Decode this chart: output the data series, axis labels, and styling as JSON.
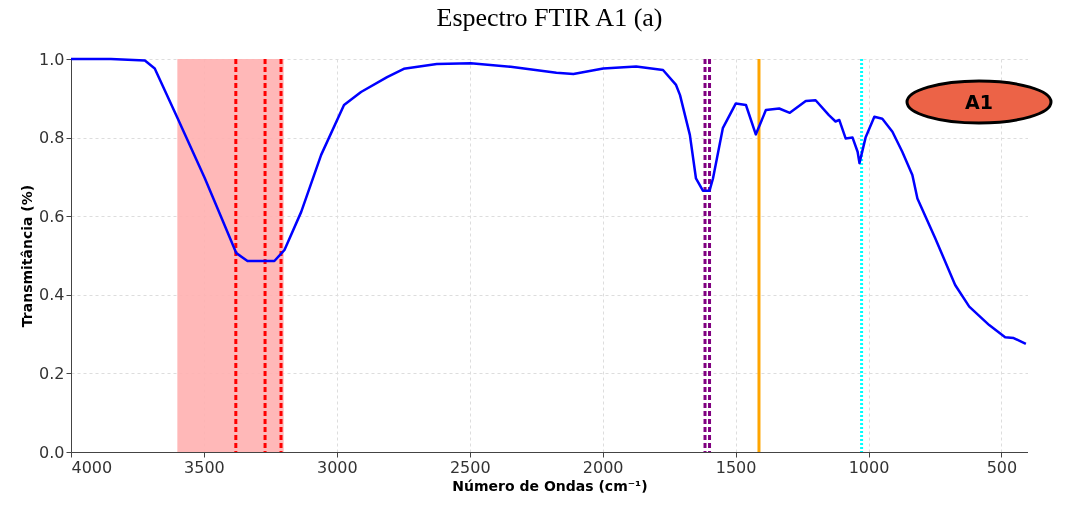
{
  "chart_data": {
    "type": "line",
    "title": "Espectro FTIR A1 (a)",
    "xlabel": "Número de Ondas (cm⁻¹)",
    "ylabel": "Transmitância (%)",
    "annotations": [
      "A1"
    ],
    "xlim": [
      4000,
      400
    ],
    "xticks": [
      4000,
      3500,
      3000,
      2500,
      2000,
      1500,
      1000,
      500
    ],
    "ylim": [
      0,
      1
    ],
    "yticks": [
      {
        "value": 0,
        "label": "0.0"
      },
      {
        "value": 0.2,
        "label": "0.2"
      },
      {
        "value": 0.4,
        "label": "0.4"
      },
      {
        "value": 0.6,
        "label": "0.6"
      },
      {
        "value": 0.8,
        "label": "0.8"
      },
      {
        "value": 1,
        "label": "1.0"
      }
    ],
    "grid": true,
    "line_style": "solid",
    "marker": "none",
    "bands": [
      {
        "axis": "x",
        "from": 3600,
        "to": 3200,
        "color": "#ffb0b0"
      }
    ],
    "ref_lines": [
      {
        "axis": "x",
        "value": 3380,
        "color": "#ff0000",
        "line_style": "dashed"
      },
      {
        "axis": "x",
        "value": 3270,
        "color": "#ff0000",
        "line_style": "dashed"
      },
      {
        "axis": "x",
        "value": 3210,
        "color": "#ff0000",
        "line_style": "dashed"
      },
      {
        "axis": "x",
        "value": 1615,
        "color": "#800080",
        "line_style": "dashed"
      },
      {
        "axis": "x",
        "value": 1598,
        "color": "#800080",
        "line_style": "dashed"
      },
      {
        "axis": "x",
        "value": 1412,
        "color": "#ffa500",
        "line_style": "solid"
      },
      {
        "axis": "x",
        "value": 1026,
        "color": "#00ffff",
        "line_style": "dotted"
      }
    ],
    "series": [
      {
        "color": "#0000ff",
        "x": [
          4000,
          3850,
          3722,
          3685,
          3599,
          3497,
          3434,
          3378,
          3336,
          3235,
          3197,
          3134,
          3059,
          2973,
          2909,
          2811,
          2748,
          2624,
          2496,
          2346,
          2174,
          2110,
          1998,
          1874,
          1773,
          1724,
          1709,
          1672,
          1649,
          1623,
          1598,
          1585,
          1548,
          1499,
          1461,
          1424,
          1386,
          1336,
          1296,
          1236,
          1199,
          1149,
          1124,
          1110,
          1086,
          1060,
          1041,
          1034,
          1011,
          978,
          948,
          910,
          873,
          835,
          816,
          749,
          674,
          621,
          546,
          486,
          454,
          408
        ],
        "values": [
          1.0,
          1.0,
          0.996,
          0.976,
          0.849,
          0.697,
          0.596,
          0.506,
          0.486,
          0.486,
          0.514,
          0.611,
          0.756,
          0.883,
          0.916,
          0.954,
          0.975,
          0.987,
          0.989,
          0.98,
          0.965,
          0.962,
          0.976,
          0.981,
          0.972,
          0.934,
          0.908,
          0.807,
          0.696,
          0.665,
          0.665,
          0.696,
          0.824,
          0.887,
          0.883,
          0.808,
          0.87,
          0.874,
          0.863,
          0.893,
          0.895,
          0.857,
          0.841,
          0.845,
          0.798,
          0.8,
          0.764,
          0.735,
          0.8,
          0.853,
          0.848,
          0.815,
          0.764,
          0.705,
          0.645,
          0.544,
          0.425,
          0.37,
          0.323,
          0.292,
          0.29,
          0.275
        ]
      }
    ]
  }
}
